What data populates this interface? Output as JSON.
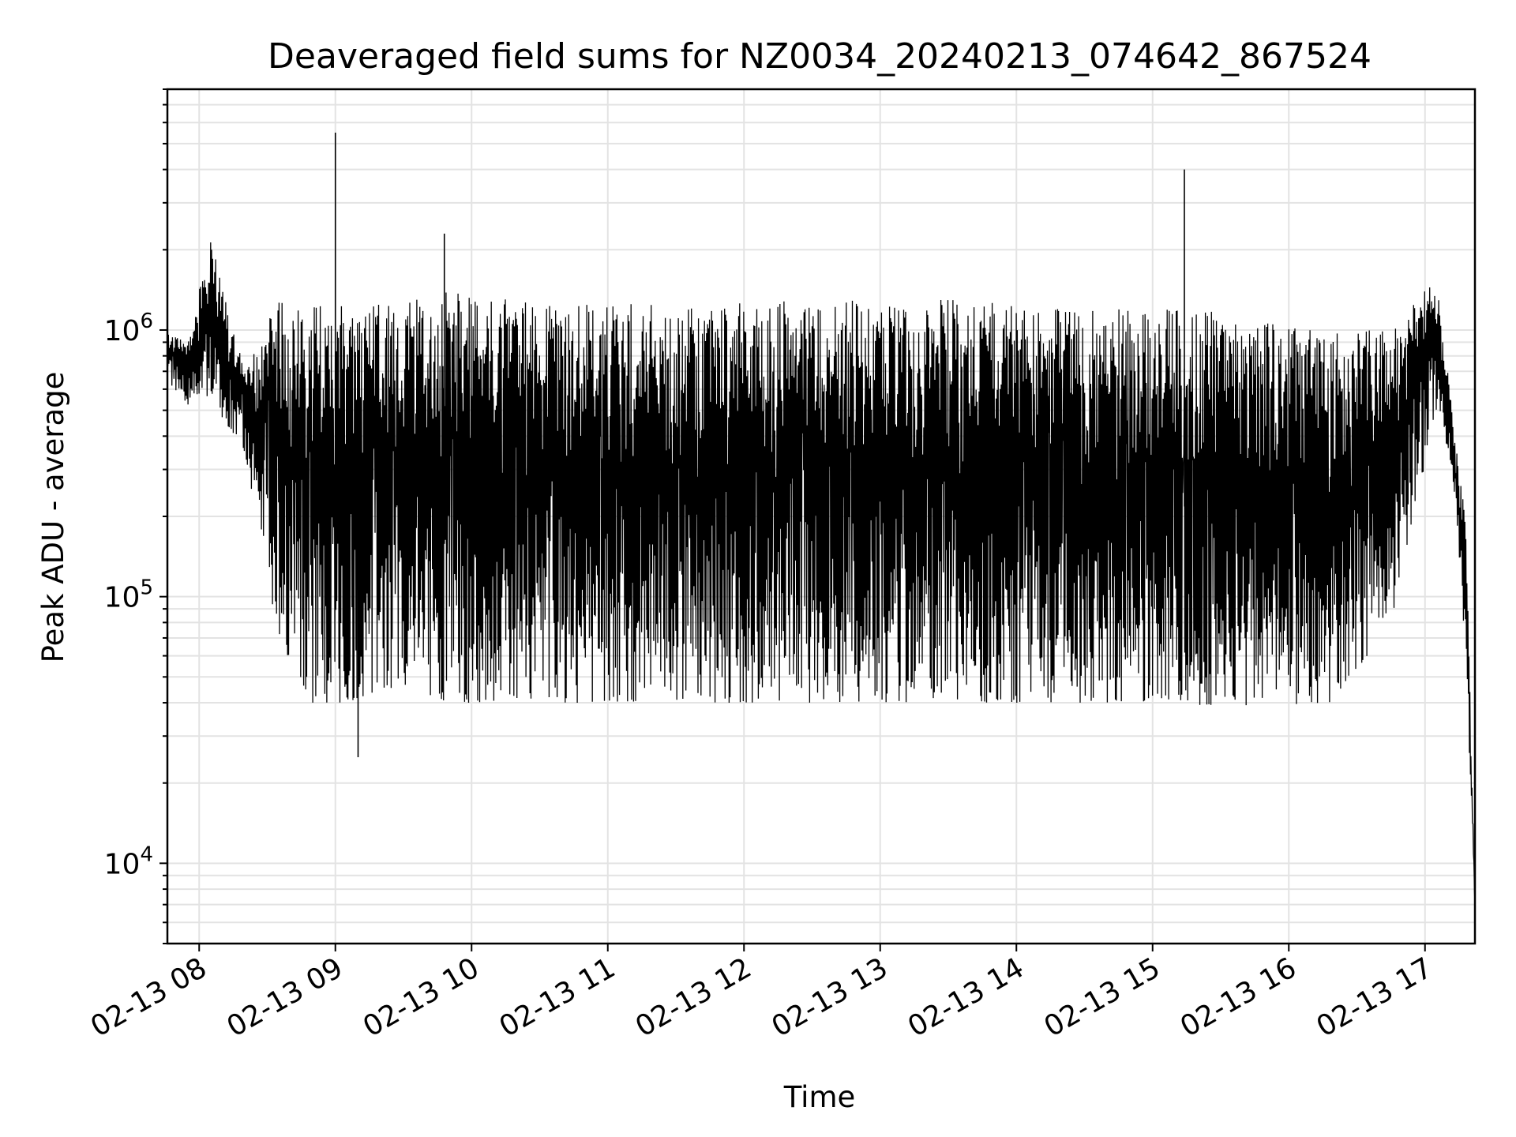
{
  "chart_data": {
    "type": "line",
    "title": "Deaveraged field sums for NZ0034_20240213_074642_867524",
    "xlabel": "Time",
    "ylabel": "Peak ADU - average",
    "x_range": [
      "02-13 07:46",
      "02-13 17:22"
    ],
    "y_range": [
      5000,
      8000000
    ],
    "y_scale": "log",
    "grid": true,
    "x_ticks": [
      "02-13 08",
      "02-13 09",
      "02-13 10",
      "02-13 11",
      "02-13 12",
      "02-13 13",
      "02-13 14",
      "02-13 15",
      "02-13 16",
      "02-13 17"
    ],
    "y_ticks": [
      {
        "value": 10000,
        "mantissa": "10",
        "exponent": "4"
      },
      {
        "value": 100000,
        "mantissa": "10",
        "exponent": "5"
      },
      {
        "value": 1000000,
        "mantissa": "10",
        "exponent": "6"
      }
    ],
    "series": [
      {
        "color": "#000000",
        "x": [
          "02-13 07:46",
          "02-13 07:55",
          "02-13 08:05",
          "02-13 08:20",
          "02-13 08:35",
          "02-13 08:50",
          "02-13 09:05",
          "02-13 09:20",
          "02-13 09:35",
          "02-13 09:50",
          "02-13 10:30",
          "02-13 11:30",
          "02-13 12:30",
          "02-13 13:30",
          "02-13 14:30",
          "02-13 15:10",
          "02-13 15:40",
          "02-13 16:20",
          "02-13 16:45",
          "02-13 17:05",
          "02-13 17:12",
          "02-13 17:18",
          "02-13 17:22"
        ],
        "upper": [
          1000000,
          900000,
          2200000,
          700000,
          1300000,
          1300000,
          1300000,
          1300000,
          1300000,
          1400000,
          1250000,
          1250000,
          1300000,
          1300000,
          1200000,
          1200000,
          1150000,
          1000000,
          1000000,
          1600000,
          500000,
          200000,
          7000
        ],
        "lower": [
          650000,
          520000,
          550000,
          350000,
          70000,
          40000,
          40000,
          45000,
          45000,
          40000,
          40000,
          40000,
          40000,
          40000,
          40000,
          40000,
          38000,
          40000,
          80000,
          500000,
          300000,
          60000,
          7000
        ],
        "spikes": [
          {
            "x": "02-13 09:00",
            "y": 5500000
          },
          {
            "x": "02-13 09:48",
            "y": 2300000
          },
          {
            "x": "02-13 15:14",
            "y": 4000000
          },
          {
            "x": "02-13 09:10",
            "y": 25000
          }
        ]
      }
    ]
  }
}
